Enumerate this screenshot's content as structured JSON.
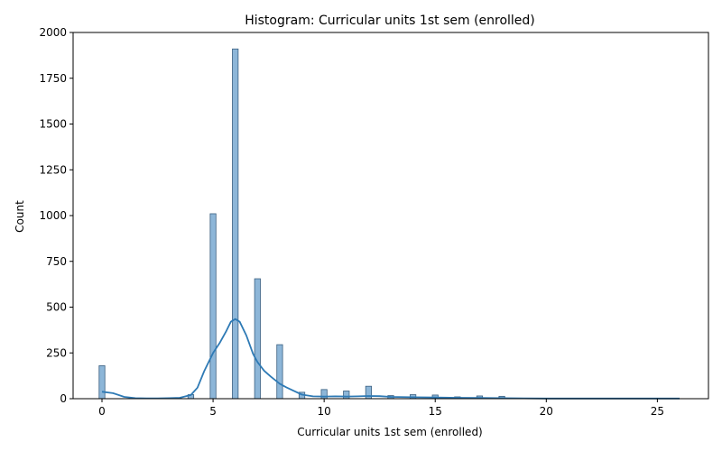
{
  "chart_data": {
    "type": "bar",
    "title": "Histogram: Curricular units 1st sem (enrolled)",
    "xlabel": "Curricular units 1st sem (enrolled)",
    "ylabel": "Count",
    "xlim": [
      -1.3,
      27.3
    ],
    "ylim": [
      0,
      2000
    ],
    "xticks": [
      0,
      5,
      10,
      15,
      20,
      25
    ],
    "yticks": [
      0,
      250,
      500,
      750,
      1000,
      1250,
      1500,
      1750,
      2000
    ],
    "bin_width": 0.26,
    "bars": [
      {
        "x": 0,
        "count": 180
      },
      {
        "x": 4,
        "count": 22
      },
      {
        "x": 5,
        "count": 1010
      },
      {
        "x": 6,
        "count": 1910
      },
      {
        "x": 7,
        "count": 655
      },
      {
        "x": 8,
        "count": 295
      },
      {
        "x": 9,
        "count": 35
      },
      {
        "x": 10,
        "count": 50
      },
      {
        "x": 11,
        "count": 42
      },
      {
        "x": 12,
        "count": 68
      },
      {
        "x": 13,
        "count": 17
      },
      {
        "x": 14,
        "count": 22
      },
      {
        "x": 15,
        "count": 20
      },
      {
        "x": 16,
        "count": 10
      },
      {
        "x": 17,
        "count": 15
      },
      {
        "x": 18,
        "count": 13
      }
    ],
    "kde": {
      "x": [
        0,
        0.5,
        1,
        1.5,
        2,
        2.5,
        3,
        3.5,
        4,
        4.3,
        4.6,
        5,
        5.3,
        5.6,
        5.8,
        6,
        6.2,
        6.5,
        6.8,
        7,
        7.3,
        7.6,
        8,
        8.3,
        8.6,
        9,
        9.5,
        10,
        10.5,
        11,
        11.5,
        12,
        12.5,
        13,
        14,
        15,
        16,
        17,
        18,
        19,
        20,
        22,
        24,
        26
      ],
      "y": [
        38,
        30,
        10,
        3,
        2,
        2,
        3,
        5,
        20,
        60,
        150,
        250,
        305,
        370,
        420,
        435,
        420,
        345,
        245,
        200,
        152,
        120,
        82,
        62,
        45,
        22,
        13,
        12,
        13,
        12,
        13,
        15,
        14,
        10,
        8,
        7,
        5,
        4,
        3,
        2,
        1,
        1,
        1,
        1
      ]
    },
    "colors": {
      "bar_fill": "#8db6d8",
      "bar_edge": "#3a5f80",
      "kde_line": "#2e7ab5"
    },
    "grid": false,
    "legend": "none"
  }
}
